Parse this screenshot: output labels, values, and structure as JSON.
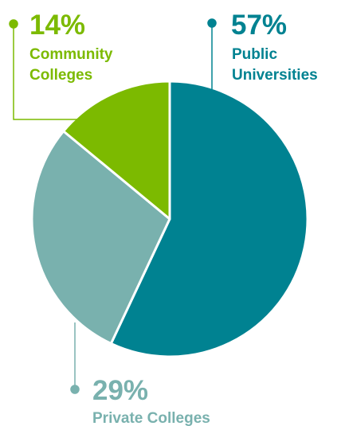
{
  "chart_data": {
    "type": "pie",
    "slices": [
      {
        "label": "Public Universities",
        "value": 57,
        "value_text": "57%",
        "label_lines": [
          "Public",
          "Universities"
        ],
        "color": "#008291"
      },
      {
        "label": "Private Colleges",
        "value": 29,
        "value_text": "29%",
        "label_lines": [
          "Private Colleges"
        ],
        "color": "#79b1ae"
      },
      {
        "label": "Community Colleges",
        "value": 14,
        "value_text": "14%",
        "label_lines": [
          "Community",
          "Colleges"
        ],
        "color": "#7cba00"
      }
    ],
    "start_angle": "12 o'clock",
    "direction": "clockwise"
  }
}
